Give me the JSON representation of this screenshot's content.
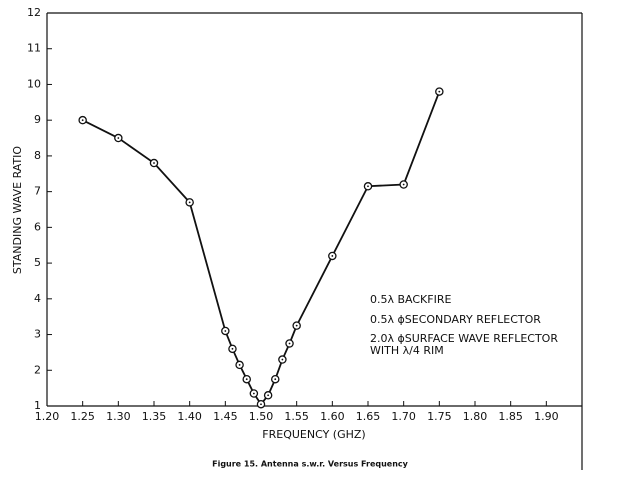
{
  "chart_data": {
    "type": "line",
    "x_label": "FREQUENCY (GHZ)",
    "y_label": "STANDING WAVE RATIO",
    "caption": "Figure 15. Antenna s.w.r. Versus Frequency",
    "annotations": [
      "0.5λ BACKFIRE",
      "0.5λ  ϕSECONDARY REFLECTOR",
      "2.0λ  ϕSURFACE WAVE REFLECTOR",
      "WITH λ/4 RIM"
    ],
    "xlim": [
      1.2,
      1.95
    ],
    "ylim": [
      1,
      12
    ],
    "xticks": [
      {
        "value": 1.2,
        "label": "1.20"
      },
      {
        "value": 1.25,
        "label": "1.25"
      },
      {
        "value": 1.3,
        "label": "1.30"
      },
      {
        "value": 1.35,
        "label": "1.35"
      },
      {
        "value": 1.4,
        "label": "1.40"
      },
      {
        "value": 1.45,
        "label": "1.45"
      },
      {
        "value": 1.5,
        "label": "1.50"
      },
      {
        "value": 1.55,
        "label": "1.55"
      },
      {
        "value": 1.6,
        "label": "1.60"
      },
      {
        "value": 1.65,
        "label": "1.65"
      },
      {
        "value": 1.7,
        "label": "1.70"
      },
      {
        "value": 1.75,
        "label": "1.75"
      },
      {
        "value": 1.8,
        "label": "1.80"
      },
      {
        "value": 1.85,
        "label": "1.85"
      },
      {
        "value": 1.9,
        "label": "1.90"
      }
    ],
    "yticks": [
      1,
      2,
      3,
      4,
      5,
      6,
      7,
      8,
      9,
      10,
      11,
      12
    ],
    "color": "#111111",
    "x": [
      1.25,
      1.3,
      1.35,
      1.4,
      1.45,
      1.46,
      1.47,
      1.48,
      1.49,
      1.5,
      1.51,
      1.52,
      1.53,
      1.54,
      1.55,
      1.6,
      1.65,
      1.7,
      1.75
    ],
    "values": [
      9.0,
      8.5,
      7.8,
      6.7,
      3.1,
      2.6,
      2.15,
      1.75,
      1.35,
      1.05,
      1.3,
      1.75,
      2.3,
      2.75,
      3.25,
      5.2,
      7.15,
      7.2,
      9.8
    ]
  }
}
